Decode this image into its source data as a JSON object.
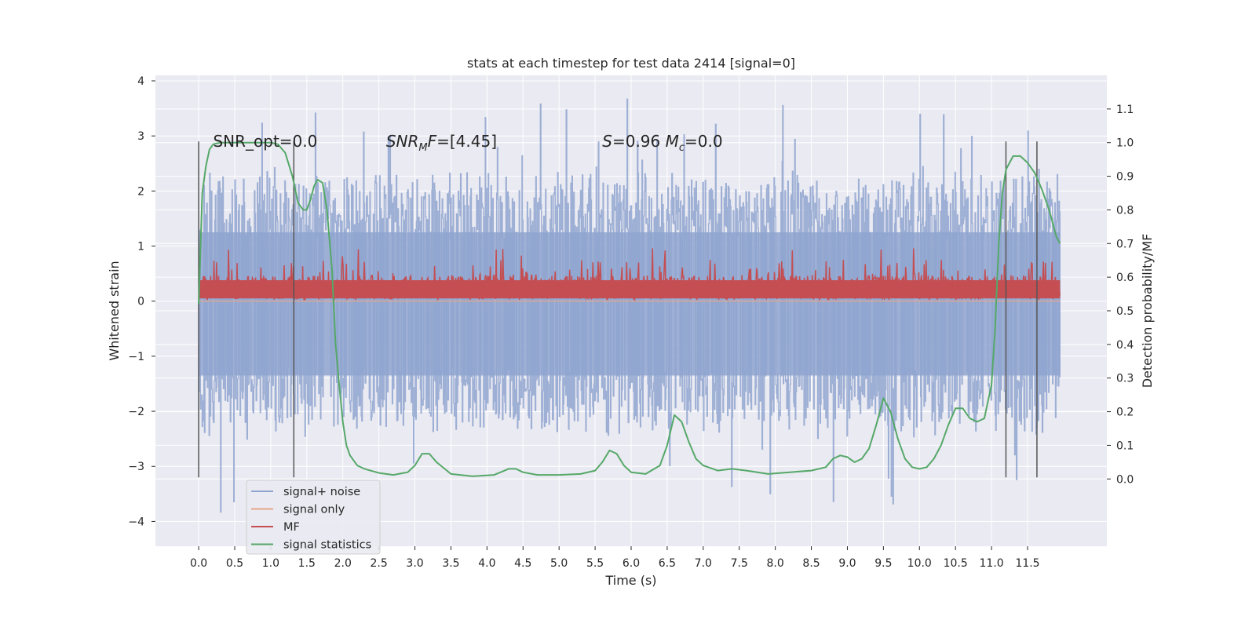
{
  "chart_data": {
    "type": "line",
    "title": "stats at each timestep for test data 2414 [signal=0]",
    "xlabel": "Time (s)",
    "ylabel": "Whitened strain",
    "y2label": "Detection probability/MF",
    "xlim": [
      -0.6,
      12.6
    ],
    "ylim": [
      -4.45,
      4.1
    ],
    "y2lim": [
      -0.2,
      1.2
    ],
    "x_ticks": [
      "0.0",
      "0.5",
      "1.0",
      "1.5",
      "2.0",
      "2.5",
      "3.0",
      "3.5",
      "4.0",
      "4.5",
      "5.0",
      "5.5",
      "6.0",
      "6.5",
      "7.0",
      "7.5",
      "8.0",
      "8.5",
      "9.0",
      "9.5",
      "10.0",
      "10.5",
      "11.0",
      "11.5"
    ],
    "y_ticks": [
      "4",
      "3",
      "2",
      "1",
      "0",
      "−1",
      "−2",
      "−3",
      "−4"
    ],
    "y2_ticks": [
      "0.0",
      "0.1",
      "0.2",
      "0.3",
      "0.4",
      "0.5",
      "0.6",
      "0.7",
      "0.8",
      "0.9",
      "1.0",
      "1.1"
    ],
    "grid": true,
    "legend_position": "lower-left",
    "annotations": [
      {
        "text": "SNR_opt=0.0",
        "x": 0.2,
        "y": 2.9
      },
      {
        "text": "SNR_MF=[4.45]",
        "x": 2.6,
        "y": 2.9
      },
      {
        "text": "S=0.96   M_c=0.0",
        "x": 5.6,
        "y": 2.9
      }
    ],
    "vertical_markers": [
      0.0,
      1.32,
      11.2,
      11.63
    ],
    "marker_range": [
      -3.2,
      2.9
    ],
    "series": [
      {
        "name": "signal+ noise",
        "axis": "left",
        "color": "#8fa5cf",
        "style": "dense noise, roughly ±2 with spikes to ±3.8",
        "x_range": [
          0.0,
          11.95
        ],
        "envelope_low": -2.1,
        "envelope_high": 2.0,
        "spike_max": 3.75,
        "spike_min": -4.0
      },
      {
        "name": "signal only",
        "axis": "left",
        "color": "#e8a58a",
        "x": [
          0.0,
          11.95
        ],
        "y": [
          0.0,
          0.0
        ]
      },
      {
        "name": "MF",
        "axis": "left",
        "color": "#c44e52",
        "style": "dense noise between 0 and ~0.6 with spikes to ~1.0",
        "x_range": [
          0.0,
          11.95
        ],
        "envelope_low": 0.0,
        "envelope_high": 0.55,
        "spike_max": 1.0
      },
      {
        "name": "signal statistics",
        "axis": "right",
        "color": "#55a868",
        "x": [
          0.0,
          0.05,
          0.1,
          0.15,
          0.2,
          0.3,
          0.5,
          0.8,
          1.0,
          1.1,
          1.2,
          1.3,
          1.38,
          1.45,
          1.5,
          1.55,
          1.6,
          1.65,
          1.72,
          1.78,
          1.85,
          1.9,
          1.95,
          2.0,
          2.05,
          2.1,
          2.2,
          2.3,
          2.5,
          2.7,
          2.9,
          3.0,
          3.1,
          3.2,
          3.3,
          3.5,
          3.8,
          4.1,
          4.3,
          4.4,
          4.5,
          4.7,
          5.0,
          5.3,
          5.5,
          5.6,
          5.7,
          5.8,
          5.9,
          6.0,
          6.2,
          6.4,
          6.5,
          6.6,
          6.7,
          6.8,
          6.9,
          7.0,
          7.2,
          7.4,
          7.6,
          7.9,
          8.2,
          8.5,
          8.7,
          8.8,
          8.9,
          9.0,
          9.1,
          9.2,
          9.3,
          9.4,
          9.5,
          9.6,
          9.7,
          9.8,
          9.9,
          10.0,
          10.1,
          10.2,
          10.3,
          10.4,
          10.5,
          10.6,
          10.7,
          10.8,
          10.9,
          11.0,
          11.05,
          11.1,
          11.15,
          11.2,
          11.3,
          11.4,
          11.5,
          11.6,
          11.7,
          11.8,
          11.9,
          11.95
        ],
        "y": [
          0.52,
          0.85,
          0.93,
          0.98,
          0.995,
          1.0,
          1.0,
          1.0,
          1.0,
          0.995,
          0.97,
          0.9,
          0.82,
          0.8,
          0.8,
          0.83,
          0.87,
          0.89,
          0.88,
          0.8,
          0.62,
          0.4,
          0.28,
          0.17,
          0.1,
          0.07,
          0.04,
          0.03,
          0.018,
          0.012,
          0.02,
          0.04,
          0.075,
          0.075,
          0.05,
          0.015,
          0.008,
          0.012,
          0.03,
          0.03,
          0.02,
          0.012,
          0.012,
          0.015,
          0.025,
          0.05,
          0.085,
          0.075,
          0.04,
          0.02,
          0.015,
          0.04,
          0.1,
          0.19,
          0.17,
          0.11,
          0.06,
          0.04,
          0.025,
          0.03,
          0.025,
          0.015,
          0.02,
          0.025,
          0.035,
          0.06,
          0.07,
          0.065,
          0.05,
          0.06,
          0.09,
          0.16,
          0.24,
          0.2,
          0.12,
          0.06,
          0.035,
          0.03,
          0.035,
          0.06,
          0.1,
          0.16,
          0.21,
          0.21,
          0.18,
          0.17,
          0.18,
          0.28,
          0.45,
          0.7,
          0.85,
          0.92,
          0.96,
          0.96,
          0.94,
          0.91,
          0.86,
          0.8,
          0.72,
          0.7
        ]
      }
    ]
  }
}
